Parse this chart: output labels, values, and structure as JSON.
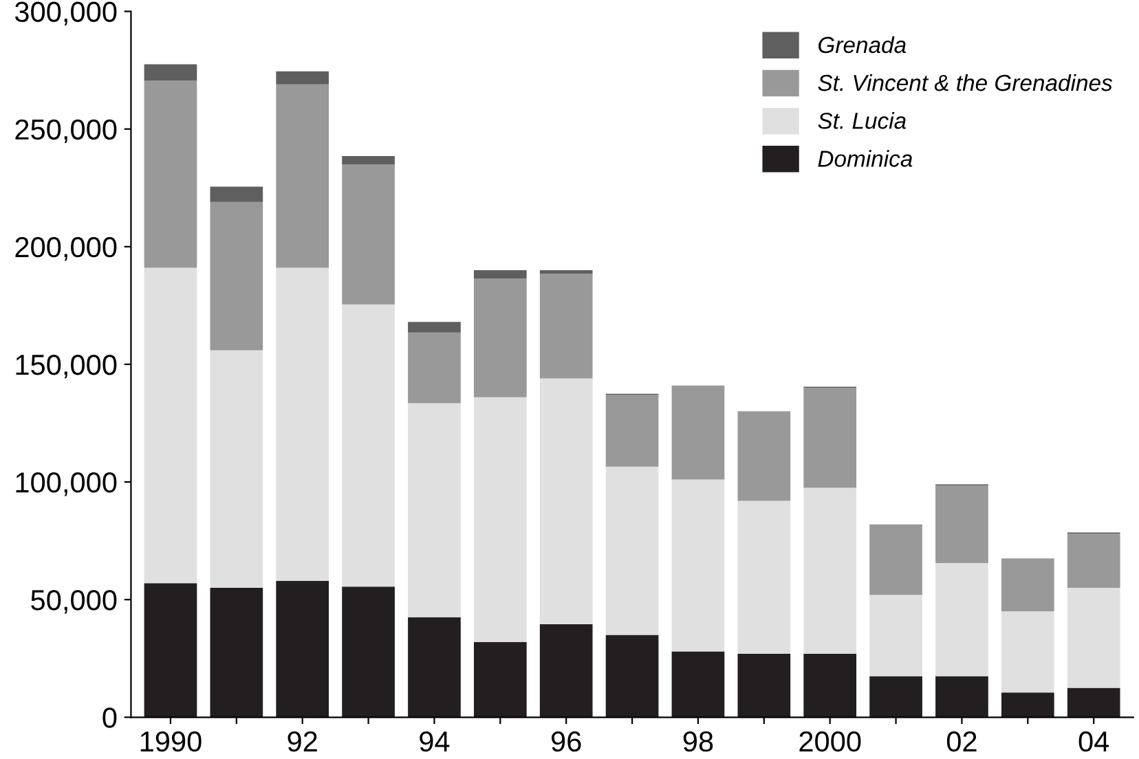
{
  "chart_data": {
    "type": "bar",
    "stacked": true,
    "categories": [
      "1990",
      null,
      "92",
      null,
      "94",
      null,
      "96",
      null,
      "98",
      null,
      "2000",
      null,
      "02",
      null,
      "04"
    ],
    "series": [
      {
        "name": "Dominica",
        "color": "#231f20",
        "values": [
          57000,
          55000,
          58000,
          55500,
          42500,
          32000,
          39500,
          35000,
          28000,
          27000,
          27000,
          17500,
          17500,
          10500,
          12500
        ]
      },
      {
        "name": "St. Lucia",
        "color": "#e0e0e0",
        "values": [
          134000,
          101000,
          133000,
          120000,
          91000,
          104000,
          104500,
          71500,
          73000,
          65000,
          70500,
          34500,
          48000,
          34500,
          42500
        ]
      },
      {
        "name": "St. Vincent & the Grenadines",
        "color": "#999999",
        "values": [
          79500,
          63000,
          78000,
          59500,
          30000,
          50500,
          44500,
          30500,
          40000,
          38000,
          42500,
          30000,
          33000,
          22500,
          23000
        ]
      },
      {
        "name": "Grenada",
        "color": "#5f5f5f",
        "values": [
          7000,
          6500,
          5500,
          3500,
          4500,
          3500,
          1500,
          500,
          0,
          0,
          500,
          0,
          500,
          0,
          500
        ]
      }
    ],
    "ylim": [
      0,
      300000
    ],
    "yticks": [
      0,
      {
        "value": 50000,
        "label": "50,000"
      },
      {
        "value": 100000,
        "label": "100,000"
      },
      {
        "value": 150000,
        "label": "150,000"
      },
      {
        "value": 200000,
        "label": "200,000"
      },
      {
        "value": 250000,
        "label": "250,000"
      },
      {
        "value": 300000,
        "label": "300,000"
      }
    ],
    "grid": false,
    "legend": "top right"
  }
}
